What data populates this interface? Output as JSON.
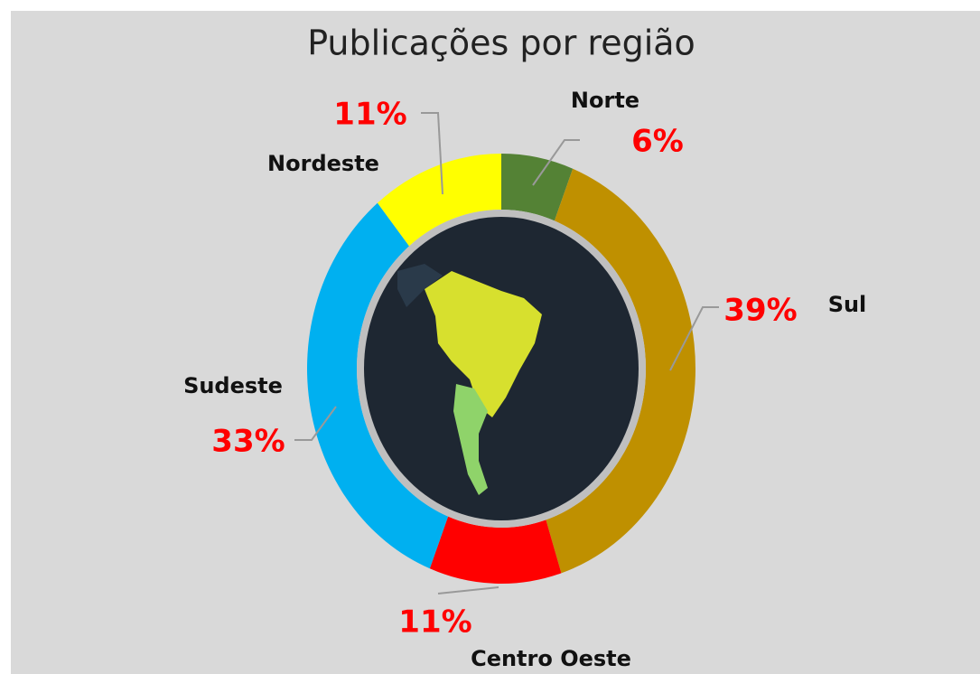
{
  "chart_data": {
    "type": "donut",
    "title": "Publicações por região",
    "categories": [
      "Norte",
      "Sul",
      "Centro Oeste",
      "Sudeste",
      "Nordeste"
    ],
    "values": [
      6,
      39,
      11,
      33,
      11
    ],
    "value_labels": [
      "6%",
      "39%",
      "11%",
      "33%",
      "11%"
    ],
    "colors": [
      "#548235",
      "#bf9000",
      "#ff0000",
      "#00b0f0",
      "#ffff00"
    ]
  }
}
